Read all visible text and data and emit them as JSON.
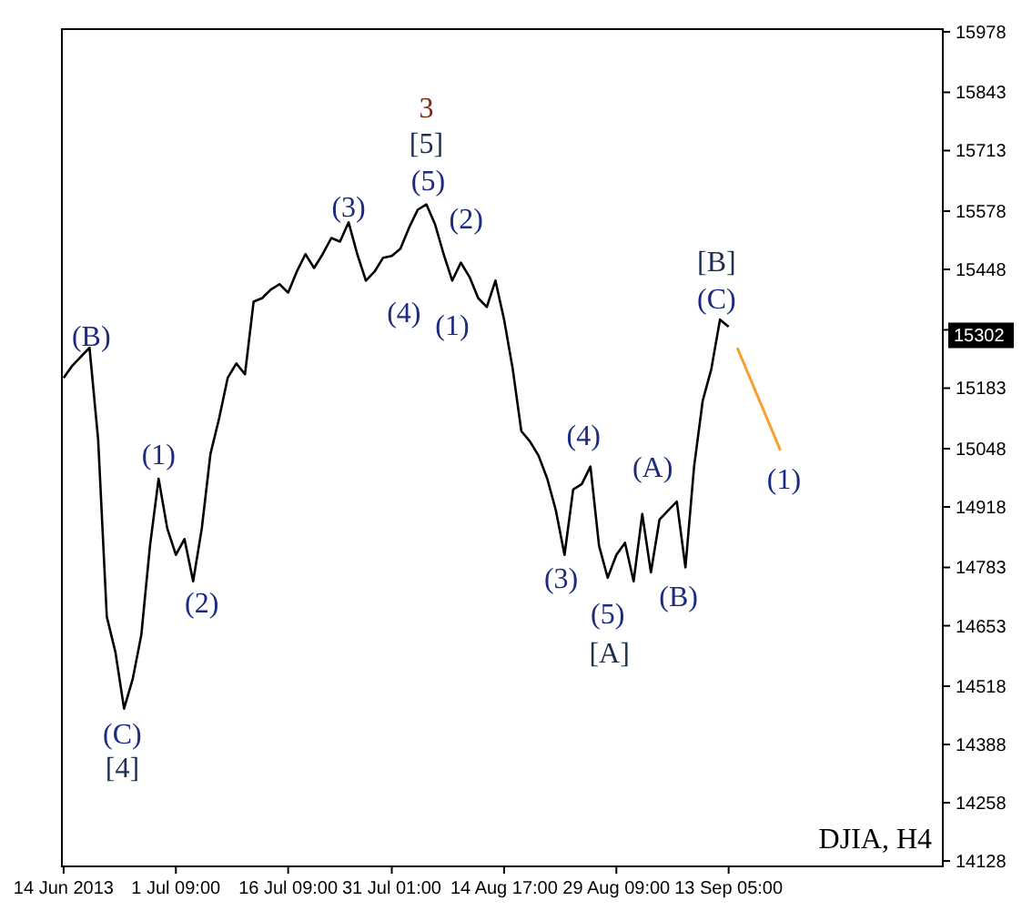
{
  "chart_data": {
    "type": "line",
    "ylim": [
      14116,
      15984
    ],
    "categories": [
      "14 Jun 2013",
      null,
      null,
      null,
      null,
      null,
      null,
      null,
      null,
      null,
      null,
      null,
      null,
      "1 Jul 09:00",
      null,
      null,
      null,
      null,
      null,
      null,
      null,
      null,
      null,
      null,
      null,
      null,
      "16 Jul 09:00",
      null,
      null,
      null,
      null,
      null,
      null,
      null,
      null,
      null,
      null,
      null,
      "31 Jul 01:00",
      null,
      null,
      null,
      null,
      null,
      null,
      null,
      null,
      null,
      null,
      null,
      null,
      "14 Aug 17:00",
      null,
      null,
      null,
      null,
      null,
      null,
      null,
      null,
      null,
      null,
      null,
      null,
      "29 Aug 09:00",
      null,
      null,
      null,
      null,
      null,
      null,
      null,
      null,
      null,
      null,
      null,
      null,
      "13 Sep 05:00",
      null,
      null,
      null,
      null,
      null,
      null,
      null,
      null,
      null,
      null,
      null,
      null,
      null,
      null,
      null,
      null,
      null,
      null,
      null,
      null,
      null,
      null,
      null,
      null
    ],
    "yticks": [
      14128,
      14258,
      14388,
      14518,
      14653,
      14783,
      14918,
      15048,
      15183,
      {
        "value": 15313,
        "label": null
      },
      15448,
      15578,
      15713,
      15843,
      15978
    ],
    "series": [
      {
        "color": "#000000",
        "values": [
          15206,
          15233,
          15253,
          15273,
          15068,
          14673,
          14594,
          14468,
          14534,
          14633,
          14831,
          14981,
          14870,
          14811,
          14846,
          14752,
          14870,
          15036,
          15115,
          15206,
          15238,
          15214,
          15376,
          15384,
          15403,
          15415,
          15396,
          15443,
          15482,
          15451,
          15482,
          15518,
          15510,
          15553,
          15482,
          15423,
          15443,
          15474,
          15478,
          15494,
          15541,
          15581,
          15593,
          15549,
          15482,
          15423,
          15463,
          15431,
          15384,
          15364,
          15423,
          15336,
          15226,
          15087,
          15064,
          15032,
          14981,
          14910,
          14811,
          14957,
          14969,
          15008,
          14831,
          14760,
          14811,
          14838,
          14752,
          14902,
          14772,
          14890,
          14910,
          14930,
          14783,
          15008,
          15155,
          15226,
          15336,
          15320,
          null,
          null,
          null,
          null,
          null,
          null,
          null,
          null,
          null,
          null,
          null,
          null,
          null,
          null,
          null,
          null,
          null,
          null,
          null,
          null,
          null,
          null,
          null,
          null
        ]
      },
      {
        "color": "#f5a030",
        "values": [
          null,
          null,
          null,
          null,
          null,
          null,
          null,
          null,
          null,
          null,
          null,
          null,
          null,
          null,
          null,
          null,
          null,
          null,
          null,
          null,
          null,
          null,
          null,
          null,
          null,
          null,
          null,
          null,
          null,
          null,
          null,
          null,
          null,
          null,
          null,
          null,
          null,
          null,
          null,
          null,
          null,
          null,
          null,
          null,
          null,
          null,
          null,
          null,
          null,
          null,
          null,
          null,
          null,
          null,
          null,
          null,
          null,
          null,
          null,
          null,
          null,
          null,
          null,
          null,
          null,
          null,
          null,
          null,
          null,
          null,
          null,
          null,
          null,
          null,
          null,
          null,
          null,
          null,
          15273,
          null,
          null,
          null,
          null,
          15044,
          null,
          null,
          null,
          null,
          null,
          null,
          null,
          null,
          null,
          null,
          null,
          null,
          null,
          null,
          null,
          null,
          null,
          null
        ]
      }
    ],
    "annotations": [
      "(B)",
      "(1)",
      "(2)",
      "(C)",
      "[4]",
      "(3)",
      "3",
      "[5]",
      "(5)",
      "(2)",
      "(4)",
      "(1)",
      "(4)",
      "(3)",
      "(5)",
      "[A]",
      "(A)",
      "(B)",
      "[B]",
      "(C)",
      "(1)",
      "DJIA, H4",
      "15302"
    ],
    "grid": false
  }
}
